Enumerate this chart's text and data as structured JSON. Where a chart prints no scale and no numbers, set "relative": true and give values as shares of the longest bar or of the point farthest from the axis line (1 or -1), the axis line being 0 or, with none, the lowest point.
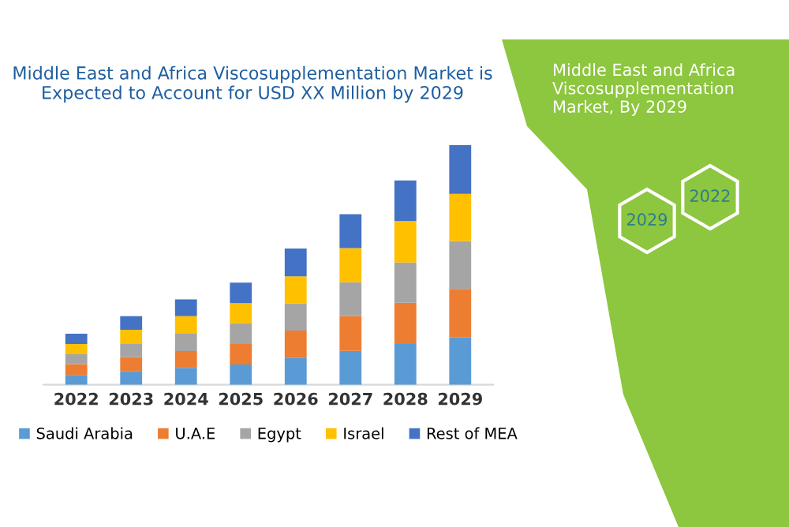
{
  "chart_data": {
    "type": "bar",
    "title": "Middle East and Africa Viscosupplementation Market is Expected to Account for USD XX Million by 2029",
    "categories": [
      "2022",
      "2023",
      "2024",
      "2025",
      "2026",
      "2027",
      "2028",
      "2029"
    ],
    "stacked": true,
    "relative": true,
    "legend": "bottom",
    "series": [
      {
        "name": "Saudi Arabia",
        "color": "#5b9bd5",
        "values": [
          0.041,
          0.057,
          0.07,
          0.084,
          0.113,
          0.141,
          0.17,
          0.197
        ]
      },
      {
        "name": "U.A.E",
        "color": "#ed7d31",
        "values": [
          0.045,
          0.059,
          0.07,
          0.086,
          0.113,
          0.145,
          0.172,
          0.202
        ]
      },
      {
        "name": "Egypt",
        "color": "#a5a5a5",
        "values": [
          0.041,
          0.054,
          0.073,
          0.086,
          0.113,
          0.141,
          0.168,
          0.2
        ]
      },
      {
        "name": "Israel",
        "color": "#ffc000",
        "values": [
          0.043,
          0.059,
          0.073,
          0.084,
          0.113,
          0.143,
          0.172,
          0.197
        ]
      },
      {
        "name": "Rest of MEA",
        "color": "#4472c4",
        "values": [
          0.043,
          0.057,
          0.07,
          0.086,
          0.116,
          0.141,
          0.17,
          0.204
        ]
      }
    ],
    "annotations": [
      "Middle East and Africa Viscosupplementation Market, By 2029",
      "2022",
      "2029"
    ]
  }
}
